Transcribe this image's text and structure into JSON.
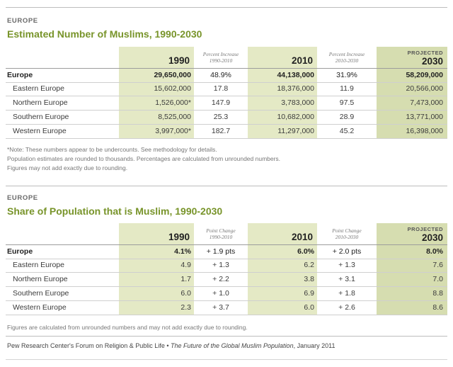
{
  "section1": {
    "kicker": "EUROPE",
    "title": "Estimated Number of Muslims, 1990-2030",
    "headers": {
      "y1990": "1990",
      "pct1": "Percent Increase",
      "pct1_range": "1990-2010",
      "y2010": "2010",
      "pct2": "Percent Increase",
      "pct2_range": "2010-2030",
      "projected": "PROJECTED",
      "y2030": "2030"
    },
    "rows": [
      {
        "name": "Europe",
        "v1990": "29,650,000",
        "inc1": "48.9%",
        "v2010": "44,138,000",
        "inc2": "31.9%",
        "v2030": "58,209,000"
      },
      {
        "name": "Eastern Europe",
        "v1990": "15,602,000",
        "inc1": "17.8",
        "v2010": "18,376,000",
        "inc2": "11.9",
        "v2030": "20,566,000"
      },
      {
        "name": "Northern Europe",
        "v1990": "1,526,000*",
        "inc1": "147.9",
        "v2010": "3,783,000",
        "inc2": "97.5",
        "v2030": "7,473,000"
      },
      {
        "name": "Southern Europe",
        "v1990": "8,525,000",
        "inc1": "25.3",
        "v2010": "10,682,000",
        "inc2": "28.9",
        "v2030": "13,771,000"
      },
      {
        "name": "Western Europe",
        "v1990": "3,997,000*",
        "inc1": "182.7",
        "v2010": "11,297,000",
        "inc2": "45.2",
        "v2030": "16,398,000"
      }
    ],
    "notes": [
      "*Note: These numbers appear to be undercounts. See methodology for details.",
      "Population estimates are rounded to thousands. Percentages are calculated from unrounded numbers.",
      "Figures may not add exactly due to rounding."
    ]
  },
  "section2": {
    "kicker": "EUROPE",
    "title": "Share of Population that is Muslim, 1990-2030",
    "headers": {
      "y1990": "1990",
      "pt1": "Point Change",
      "pt1_range": "1990-2010",
      "y2010": "2010",
      "pt2": "Point Change",
      "pt2_range": "2010-2030",
      "projected": "PROJECTED",
      "y2030": "2030"
    },
    "rows": [
      {
        "name": "Europe",
        "v1990": "4.1%",
        "chg1": "+ 1.9 pts",
        "v2010": "6.0%",
        "chg2": "+ 2.0 pts",
        "v2030": "8.0%"
      },
      {
        "name": "Eastern Europe",
        "v1990": "4.9",
        "chg1": "+ 1.3",
        "v2010": "6.2",
        "chg2": "+ 1.3",
        "v2030": "7.6"
      },
      {
        "name": "Northern Europe",
        "v1990": "1.7",
        "chg1": "+ 2.2",
        "v2010": "3.8",
        "chg2": "+ 3.1",
        "v2030": "7.0"
      },
      {
        "name": "Southern Europe",
        "v1990": "6.0",
        "chg1": "+ 1.0",
        "v2010": "6.9",
        "chg2": "+ 1.8",
        "v2030": "8.8"
      },
      {
        "name": "Western Europe",
        "v1990": "2.3",
        "chg1": "+ 3.7",
        "v2010": "6.0",
        "chg2": "+ 2.6",
        "v2030": "8.6"
      }
    ],
    "note": "Figures are calculated from unrounded numbers and may not add exactly due to rounding."
  },
  "source": {
    "prefix": "Pew Research Center's Forum on Religion & Public Life • ",
    "publication": "The Future of the Global Muslim Population",
    "suffix": ", January 2011"
  }
}
